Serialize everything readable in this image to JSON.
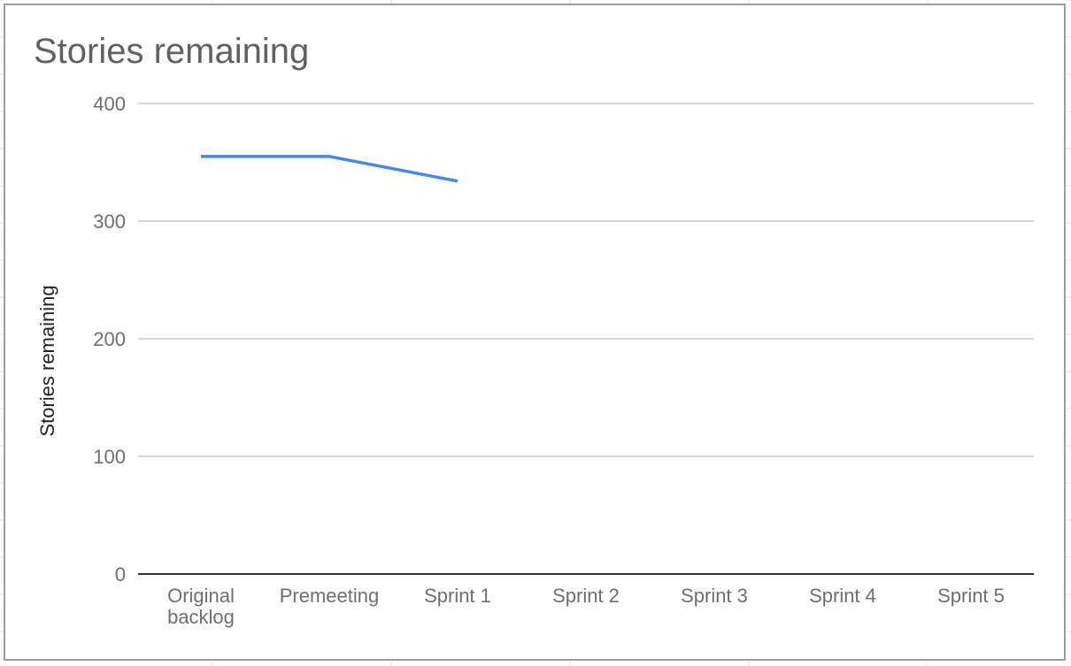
{
  "chart_data": {
    "type": "line",
    "title": "Stories remaining",
    "xlabel": "",
    "ylabel": "Stories remaining",
    "categories": [
      "Original backlog",
      "Premeeting",
      "Sprint 1",
      "Sprint 2",
      "Sprint 3",
      "Sprint 4",
      "Sprint 5"
    ],
    "category_lines": [
      [
        "Original",
        "backlog"
      ],
      [
        "Premeeting"
      ],
      [
        "Sprint 1"
      ],
      [
        "Sprint 2"
      ],
      [
        "Sprint 3"
      ],
      [
        "Sprint 4"
      ],
      [
        "Sprint 5"
      ]
    ],
    "series": [
      {
        "values": [
          355,
          355,
          334,
          null,
          null,
          null,
          null
        ],
        "color": "#4a86e8"
      }
    ],
    "yticks": [
      0,
      100,
      200,
      300,
      400
    ],
    "ylim": [
      0,
      400
    ],
    "grid": true,
    "legend": "none",
    "colors": {
      "gridline": "#cccccc",
      "baseline": "#333333",
      "frame": "#9e9e9e"
    }
  }
}
